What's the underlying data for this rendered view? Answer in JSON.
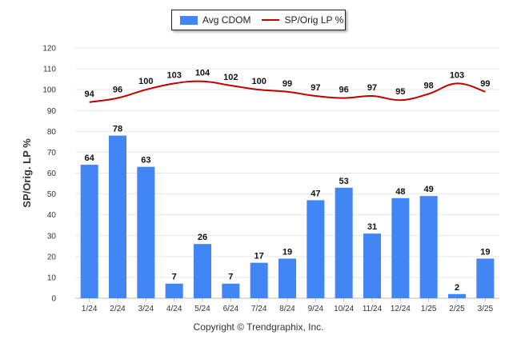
{
  "chart_data": {
    "type": "bar",
    "categories": [
      "1/24",
      "2/24",
      "3/24",
      "4/24",
      "5/24",
      "6/24",
      "7/24",
      "8/24",
      "9/24",
      "10/24",
      "11/24",
      "12/24",
      "1/25",
      "2/25",
      "3/25"
    ],
    "series": [
      {
        "name": "Avg CDOM",
        "type": "bar",
        "color": "#4285f4",
        "values": [
          64,
          78,
          63,
          7,
          26,
          7,
          17,
          19,
          47,
          53,
          31,
          48,
          49,
          2,
          19
        ]
      },
      {
        "name": "SP/Orig LP %",
        "type": "line",
        "color": "#c00000",
        "values": [
          94,
          96,
          100,
          103,
          104,
          102,
          100,
          99,
          97,
          96,
          97,
          95,
          98,
          103,
          99
        ]
      }
    ],
    "ylabel": "SP/Orig. LP %",
    "ylim": [
      0,
      120
    ],
    "yticks": [
      0,
      10,
      20,
      30,
      40,
      50,
      60,
      70,
      80,
      90,
      100,
      110,
      120
    ],
    "grid": true,
    "legend_position": "top-center"
  },
  "legend": {
    "bar_label": "Avg CDOM",
    "line_label": "SP/Orig LP %"
  },
  "footer": {
    "copyright": "Copyright © Trendgraphix, Inc."
  }
}
